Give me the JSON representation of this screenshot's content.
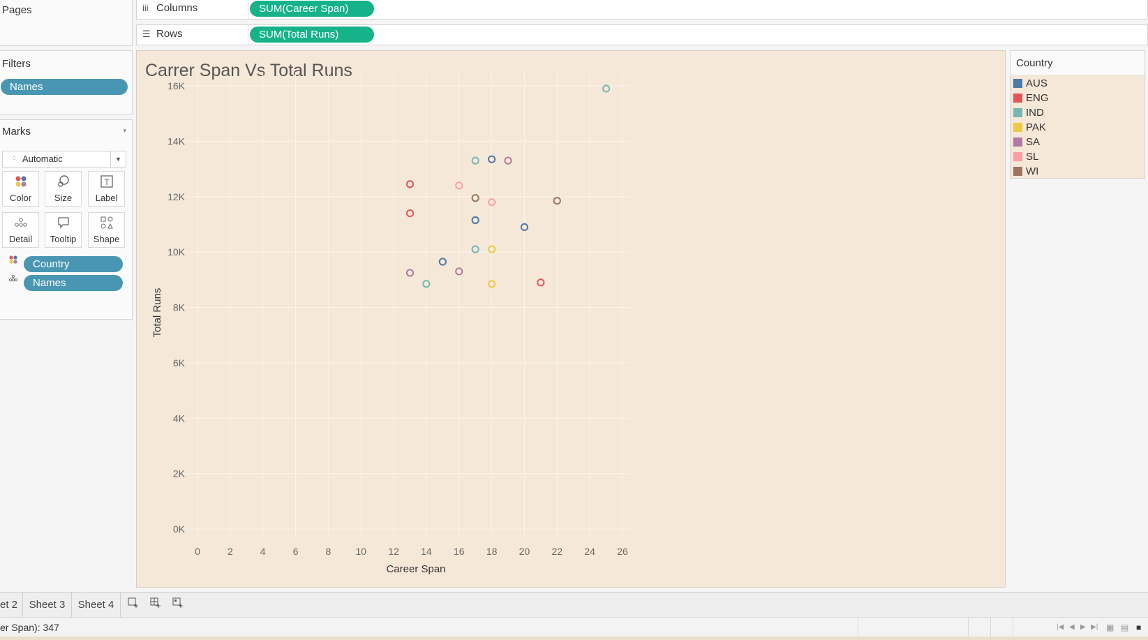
{
  "left": {
    "pages_title": "Pages",
    "filters_title": "Filters",
    "filter_pill": "Names",
    "marks_title": "Marks",
    "marks_type": "Automatic",
    "mark_buttons": [
      "Color",
      "Size",
      "Label",
      "Detail",
      "Tooltip",
      "Shape"
    ],
    "mark_pills": [
      "Country",
      "Names"
    ]
  },
  "shelves": {
    "columns_label": "Columns",
    "columns_pill": "SUM(Career Span)",
    "rows_label": "Rows",
    "rows_pill": "SUM(Total Runs)"
  },
  "legend": {
    "title": "Country",
    "items": [
      {
        "label": "AUS",
        "color": "#4e79a7"
      },
      {
        "label": "ENG",
        "color": "#e15759"
      },
      {
        "label": "IND",
        "color": "#76b7b2"
      },
      {
        "label": "PAK",
        "color": "#edc948"
      },
      {
        "label": "SA",
        "color": "#b07aa1"
      },
      {
        "label": "SL",
        "color": "#ff9da7"
      },
      {
        "label": "WI",
        "color": "#9c755f"
      }
    ]
  },
  "chart_data": {
    "type": "scatter",
    "title": "Carrer Span Vs Total Runs",
    "xlabel": "Career Span",
    "ylabel": "Total Runs",
    "xlim": [
      0,
      26
    ],
    "ylim": [
      0,
      16000
    ],
    "x_ticks": [
      "0",
      "2",
      "4",
      "6",
      "8",
      "10",
      "12",
      "14",
      "16",
      "18",
      "20",
      "22",
      "24",
      "26"
    ],
    "y_ticks": [
      "0K",
      "2K",
      "4K",
      "6K",
      "8K",
      "10K",
      "12K",
      "14K",
      "16K"
    ],
    "grid": true,
    "legend_position": "right",
    "series": [
      {
        "name": "AUS",
        "points": [
          [
            18,
            13350
          ],
          [
            17,
            11150
          ],
          [
            20,
            10900
          ],
          [
            15,
            9650
          ]
        ]
      },
      {
        "name": "ENG",
        "points": [
          [
            13,
            12450
          ],
          [
            13,
            11400
          ],
          [
            21,
            8900
          ]
        ]
      },
      {
        "name": "IND",
        "points": [
          [
            25,
            15900
          ],
          [
            17,
            13300
          ],
          [
            17,
            10100
          ],
          [
            14,
            8850
          ]
        ]
      },
      {
        "name": "PAK",
        "points": [
          [
            18,
            10100
          ],
          [
            18,
            8850
          ]
        ]
      },
      {
        "name": "SA",
        "points": [
          [
            19,
            13300
          ],
          [
            13,
            9250
          ],
          [
            16,
            9300
          ]
        ]
      },
      {
        "name": "SL",
        "points": [
          [
            16,
            12400
          ],
          [
            18,
            11800
          ]
        ]
      },
      {
        "name": "WI",
        "points": [
          [
            17,
            11950
          ],
          [
            22,
            11850
          ]
        ]
      }
    ]
  },
  "tabs": {
    "items": [
      "et 2",
      "Sheet 3",
      "Sheet 4"
    ],
    "new_icons": [
      "new-worksheet-icon",
      "new-dashboard-icon",
      "new-story-icon"
    ]
  },
  "status": {
    "text": "er Span): 347"
  }
}
